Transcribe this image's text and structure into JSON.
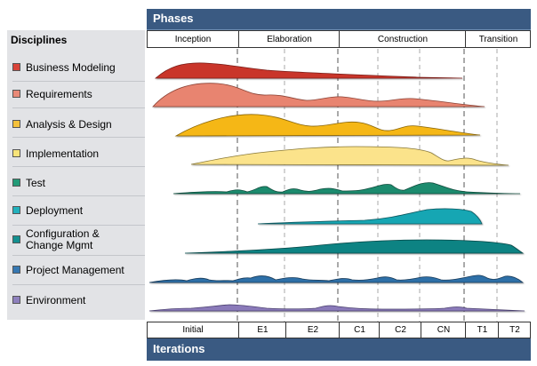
{
  "header": {
    "phases_title": "Phases",
    "iterations_title": "Iterations"
  },
  "disciplines_title": "Disciplines",
  "phases": [
    {
      "label": "Inception"
    },
    {
      "label": "Elaboration"
    },
    {
      "label": "Construction"
    },
    {
      "label": "Transition"
    }
  ],
  "iterations": [
    {
      "label": "Initial"
    },
    {
      "label": "E1"
    },
    {
      "label": "E2"
    },
    {
      "label": "C1"
    },
    {
      "label": "C2"
    },
    {
      "label": "CN"
    },
    {
      "label": "T1"
    },
    {
      "label": "T2"
    }
  ],
  "disciplines": [
    {
      "id": "business-modeling",
      "label": "Business Modeling",
      "color": "#c0392b",
      "swatch": "#d9443a"
    },
    {
      "id": "requirements",
      "label": "Requirements",
      "color": "#e47f6b",
      "swatch": "#e98a78"
    },
    {
      "id": "analysis-design",
      "label": "Analysis & Design",
      "color": "#f4b818",
      "swatch": "#f5c13a"
    },
    {
      "id": "implementation",
      "label": "Implementation",
      "color": "#fbe38a",
      "swatch": "#f8e47a"
    },
    {
      "id": "test",
      "label": "Test",
      "color": "#1c8a6e",
      "swatch": "#239b78"
    },
    {
      "id": "deployment",
      "label": "Deployment",
      "color": "#1aa7b3",
      "swatch": "#22b1bd"
    },
    {
      "id": "config-change",
      "label": "Configuration & Change Mgmt",
      "color": "#0f8080",
      "swatch": "#139090"
    },
    {
      "id": "project-management",
      "label": "Project Management",
      "color": "#2e6ea8",
      "swatch": "#3678b2"
    },
    {
      "id": "environment",
      "label": "Environment",
      "color": "#8878b8",
      "swatch": "#8e80bd"
    }
  ]
}
